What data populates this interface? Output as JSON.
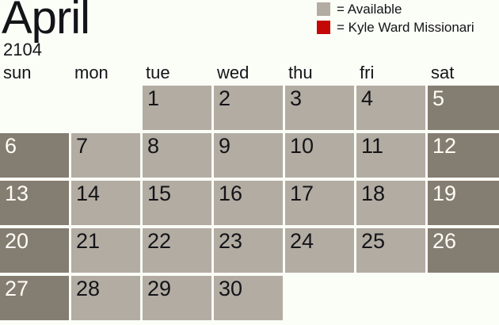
{
  "title": {
    "month": "April",
    "year": "2104"
  },
  "legend": {
    "items": [
      {
        "name": "available",
        "swatch_color": "#b2aca3",
        "label": "= Available"
      },
      {
        "name": "kyle-ward-missionaries",
        "swatch_color": "#c40707",
        "label": "= Kyle Ward Missionari"
      }
    ]
  },
  "calendar": {
    "day_headers": [
      "sun",
      "mon",
      "tue",
      "wed",
      "thu",
      "fri",
      "sat"
    ],
    "weeks": [
      [
        null,
        null,
        {
          "date": "1",
          "state": "available"
        },
        {
          "date": "2",
          "state": "available"
        },
        {
          "date": "3",
          "state": "available"
        },
        {
          "date": "4",
          "state": "available"
        },
        {
          "date": "5",
          "state": "weekend"
        }
      ],
      [
        {
          "date": "6",
          "state": "weekend"
        },
        {
          "date": "7",
          "state": "available"
        },
        {
          "date": "8",
          "state": "available"
        },
        {
          "date": "9",
          "state": "available"
        },
        {
          "date": "10",
          "state": "available"
        },
        {
          "date": "11",
          "state": "available"
        },
        {
          "date": "12",
          "state": "weekend"
        }
      ],
      [
        {
          "date": "13",
          "state": "weekend"
        },
        {
          "date": "14",
          "state": "available"
        },
        {
          "date": "15",
          "state": "available"
        },
        {
          "date": "16",
          "state": "available"
        },
        {
          "date": "17",
          "state": "available"
        },
        {
          "date": "18",
          "state": "available"
        },
        {
          "date": "19",
          "state": "weekend"
        }
      ],
      [
        {
          "date": "20",
          "state": "weekend"
        },
        {
          "date": "21",
          "state": "available"
        },
        {
          "date": "22",
          "state": "available"
        },
        {
          "date": "23",
          "state": "available"
        },
        {
          "date": "24",
          "state": "available"
        },
        {
          "date": "25",
          "state": "available"
        },
        {
          "date": "26",
          "state": "weekend"
        }
      ],
      [
        {
          "date": "27",
          "state": "weekend"
        },
        {
          "date": "28",
          "state": "available"
        },
        {
          "date": "29",
          "state": "available"
        },
        {
          "date": "30",
          "state": "available"
        },
        null,
        null,
        null
      ]
    ]
  },
  "colors": {
    "background": "#fbfdf7",
    "available_cell": "#b2aca3",
    "weekend_cell": "#847d72",
    "missionaries_red": "#c40707",
    "text_dark": "#141418",
    "text_light": "#fffdf6"
  }
}
